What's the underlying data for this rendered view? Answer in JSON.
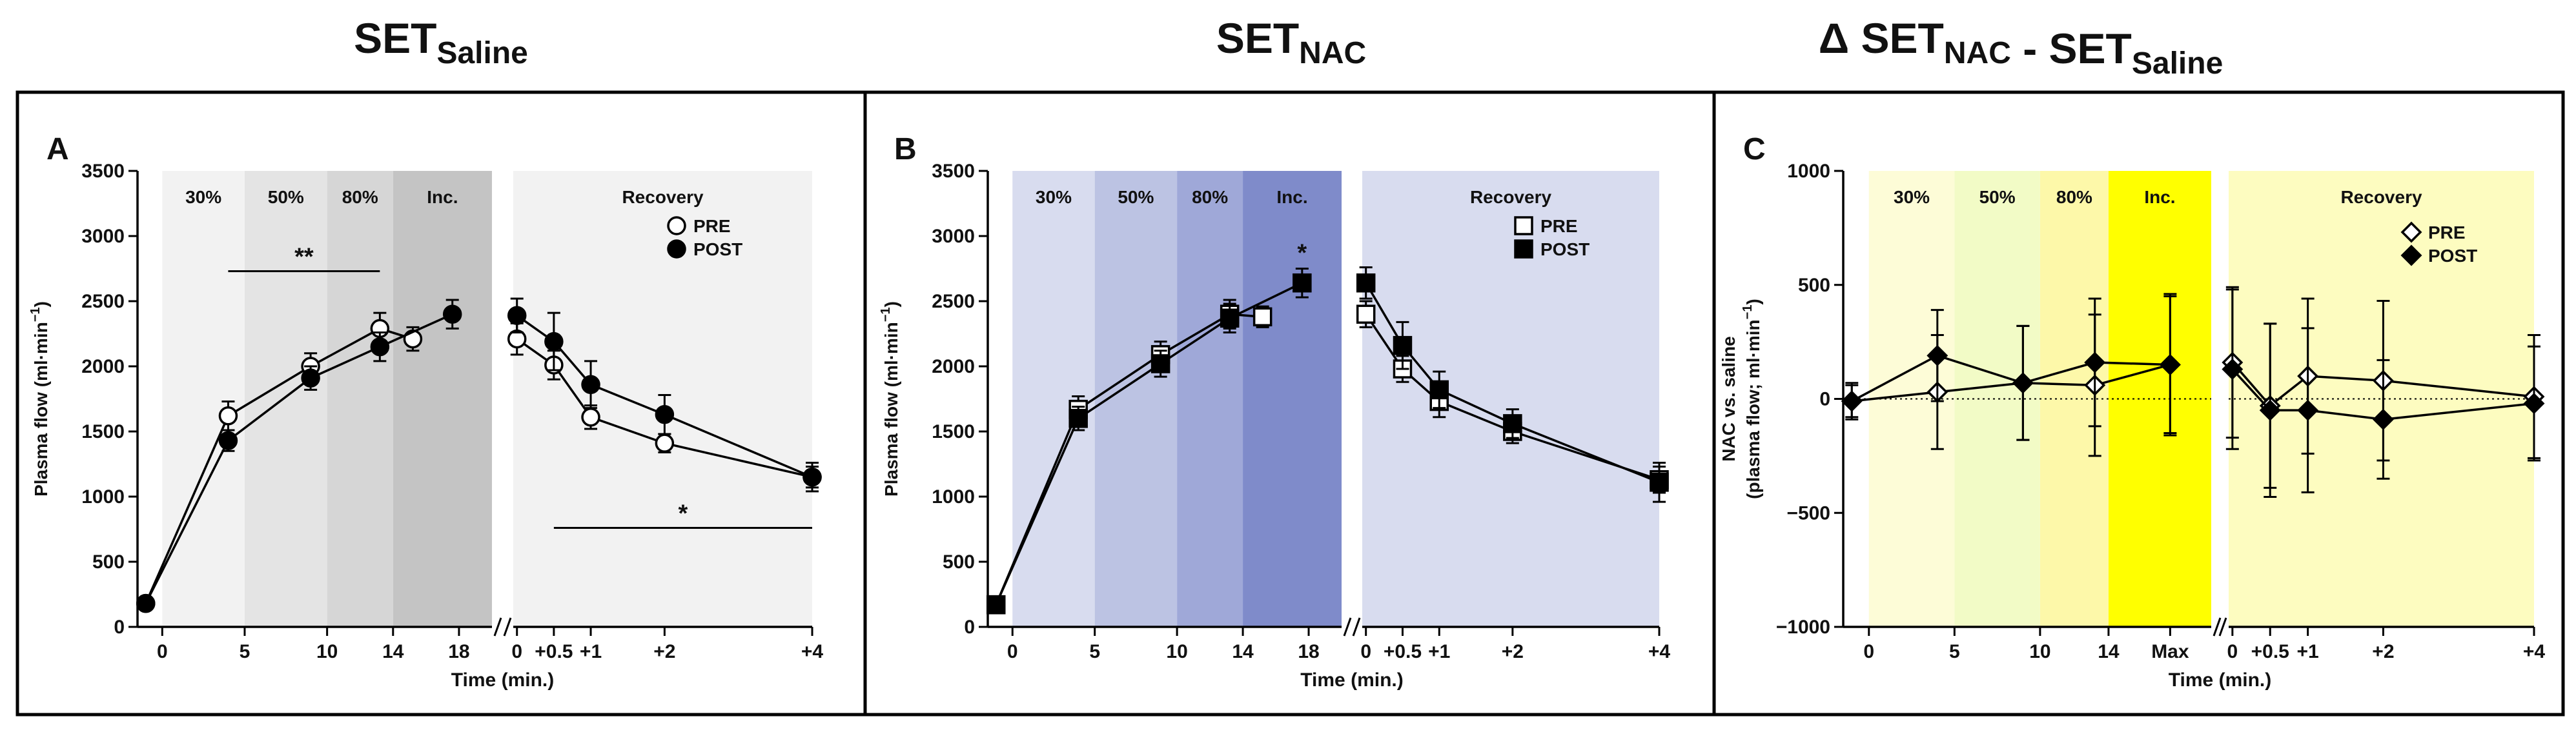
{
  "titles": [
    {
      "main": "SET",
      "sub": "Saline"
    },
    {
      "main": "SET",
      "sub": "NAC"
    },
    {
      "pre": "Δ SET",
      "sub1": "NAC",
      "mid": " - SET",
      "sub2": "Saline"
    }
  ],
  "chart_data": [
    {
      "type": "line",
      "panel_letter": "A",
      "ylabel": "Plasma flow (ml·min⁻¹)",
      "ylabel_parts": [
        "Plasma flow (ml·min",
        "−1",
        ")"
      ],
      "xlabel": "Time (min.)",
      "ylim": [
        0,
        3500
      ],
      "yticks": [
        0,
        500,
        1000,
        1500,
        2000,
        2500,
        3000,
        3500
      ],
      "exercise_xlim": [
        -1.5,
        20
      ],
      "exercise_ticks": [
        {
          "x": 0,
          "label": "0"
        },
        {
          "x": 5,
          "label": "5"
        },
        {
          "x": 10,
          "label": "10"
        },
        {
          "x": 14,
          "label": "14"
        },
        {
          "x": 18,
          "label": "18"
        }
      ],
      "recovery_xlim": [
        -0.05,
        4
      ],
      "recovery_ticks": [
        {
          "x": 0,
          "label": "0"
        },
        {
          "x": 0.5,
          "label": "+0.5"
        },
        {
          "x": 1,
          "label": "+1"
        },
        {
          "x": 2,
          "label": "+2"
        },
        {
          "x": 4,
          "label": "+4"
        }
      ],
      "phases": [
        {
          "label": "30%",
          "from": 0,
          "to": 5,
          "color": "#f2f2f2"
        },
        {
          "label": "50%",
          "from": 5,
          "to": 10,
          "color": "#e4e4e4"
        },
        {
          "label": "80%",
          "from": 10,
          "to": 14,
          "color": "#d6d6d6"
        },
        {
          "label": "Inc.",
          "from": 14,
          "to": 20,
          "color": "#c4c4c4"
        }
      ],
      "recovery_label": "Recovery",
      "recovery_color": "#f2f2f2",
      "marker": "circle",
      "series": [
        {
          "name": "PRE",
          "filled": false,
          "exercise": [
            {
              "x": -1,
              "y": 180,
              "e": 0
            },
            {
              "x": 4,
              "y": 1620,
              "e": 110
            },
            {
              "x": 9,
              "y": 2000,
              "e": 100
            },
            {
              "x": 13.2,
              "y": 2290,
              "e": 120
            },
            {
              "x": 15.2,
              "y": 2210,
              "e": 90
            }
          ],
          "recovery": [
            {
              "x": 0,
              "y": 2210,
              "e": 120
            },
            {
              "x": 0.5,
              "y": 2010,
              "e": 110
            },
            {
              "x": 1,
              "y": 1610,
              "e": 90
            },
            {
              "x": 2,
              "y": 1410,
              "e": 70
            },
            {
              "x": 4,
              "y": 1150,
              "e": 80
            }
          ]
        },
        {
          "name": "POST",
          "filled": true,
          "exercise": [
            {
              "x": -1,
              "y": 180,
              "e": 0
            },
            {
              "x": 4,
              "y": 1430,
              "e": 80
            },
            {
              "x": 9,
              "y": 1910,
              "e": 90
            },
            {
              "x": 13.2,
              "y": 2150,
              "e": 110
            },
            {
              "x": 17.6,
              "y": 2400,
              "e": 110
            }
          ],
          "recovery": [
            {
              "x": 0,
              "y": 2390,
              "e": 130
            },
            {
              "x": 0.5,
              "y": 2190,
              "e": 220
            },
            {
              "x": 1,
              "y": 1860,
              "e": 180
            },
            {
              "x": 2,
              "y": 1630,
              "e": 150
            },
            {
              "x": 4,
              "y": 1150,
              "e": 110
            }
          ]
        }
      ],
      "annotations": [
        {
          "text": "**",
          "section": "exercise",
          "x1": 4,
          "x2": 13.2,
          "y": 2730
        },
        {
          "text": "*",
          "section": "recovery",
          "x1": 0.5,
          "x2": 4,
          "y": 760
        }
      ]
    },
    {
      "type": "line",
      "panel_letter": "B",
      "ylabel": "Plasma flow (ml·min⁻¹)",
      "ylabel_parts": [
        "Plasma flow (ml·min",
        "−1",
        ")"
      ],
      "xlabel": "Time (min.)",
      "ylim": [
        0,
        3500
      ],
      "yticks": [
        0,
        500,
        1000,
        1500,
        2000,
        2500,
        3000,
        3500
      ],
      "exercise_xlim": [
        -1.5,
        20
      ],
      "exercise_ticks": [
        {
          "x": 0,
          "label": "0"
        },
        {
          "x": 5,
          "label": "5"
        },
        {
          "x": 10,
          "label": "10"
        },
        {
          "x": 14,
          "label": "14"
        },
        {
          "x": 18,
          "label": "18"
        }
      ],
      "recovery_xlim": [
        -0.05,
        4
      ],
      "recovery_ticks": [
        {
          "x": 0,
          "label": "0"
        },
        {
          "x": 0.5,
          "label": "+0.5"
        },
        {
          "x": 1,
          "label": "+1"
        },
        {
          "x": 2,
          "label": "+2"
        },
        {
          "x": 4,
          "label": "+4"
        }
      ],
      "phases": [
        {
          "label": "30%",
          "from": 0,
          "to": 5,
          "color": "#d8dcef"
        },
        {
          "label": "50%",
          "from": 5,
          "to": 10,
          "color": "#bcc3e3"
        },
        {
          "label": "80%",
          "from": 10,
          "to": 14,
          "color": "#9fa8d8"
        },
        {
          "label": "Inc.",
          "from": 14,
          "to": 20,
          "color": "#7f8bca"
        }
      ],
      "recovery_label": "Recovery",
      "recovery_color": "#d8dcef",
      "marker": "square",
      "series": [
        {
          "name": "PRE",
          "filled": false,
          "exercise": [
            {
              "x": -1,
              "y": 170,
              "e": 0
            },
            {
              "x": 4,
              "y": 1670,
              "e": 100
            },
            {
              "x": 9,
              "y": 2090,
              "e": 100
            },
            {
              "x": 13.2,
              "y": 2400,
              "e": 110
            },
            {
              "x": 15.2,
              "y": 2380,
              "e": 80
            }
          ],
          "recovery": [
            {
              "x": 0,
              "y": 2400,
              "e": 100
            },
            {
              "x": 0.5,
              "y": 1980,
              "e": 100
            },
            {
              "x": 1,
              "y": 1730,
              "e": 120
            },
            {
              "x": 2,
              "y": 1500,
              "e": 90
            },
            {
              "x": 4,
              "y": 1130,
              "e": 100
            }
          ]
        },
        {
          "name": "POST",
          "filled": true,
          "exercise": [
            {
              "x": -1,
              "y": 170,
              "e": 0
            },
            {
              "x": 4,
              "y": 1600,
              "e": 90
            },
            {
              "x": 9,
              "y": 2020,
              "e": 100
            },
            {
              "x": 13.2,
              "y": 2370,
              "e": 110
            },
            {
              "x": 17.6,
              "y": 2640,
              "e": 110
            }
          ],
          "recovery": [
            {
              "x": 0,
              "y": 2640,
              "e": 120
            },
            {
              "x": 0.5,
              "y": 2160,
              "e": 180
            },
            {
              "x": 1,
              "y": 1820,
              "e": 140
            },
            {
              "x": 2,
              "y": 1560,
              "e": 110
            },
            {
              "x": 4,
              "y": 1110,
              "e": 150
            }
          ]
        }
      ],
      "annotations": [
        {
          "text": "*",
          "section": "exercise",
          "x1": 17.6,
          "x2": 17.6,
          "y": 2760,
          "no_line": true
        }
      ]
    },
    {
      "type": "line",
      "panel_letter": "C",
      "ylabel": "NAC vs. saline (plasma flow; ml·min⁻¹)",
      "ylabel_line1": "NAC vs. saline",
      "ylabel_parts": [
        "(plasma flow; ml·min",
        "−1",
        ")"
      ],
      "xlabel": "Time (min.)",
      "ylim": [
        -1000,
        1000
      ],
      "yticks": [
        -1000,
        -500,
        0,
        500,
        1000
      ],
      "zero_line": true,
      "exercise_xlim": [
        -1.5,
        20
      ],
      "exercise_ticks": [
        {
          "x": 0,
          "label": "0"
        },
        {
          "x": 5,
          "label": "5"
        },
        {
          "x": 10,
          "label": "10"
        },
        {
          "x": 14,
          "label": "14"
        },
        {
          "x": 17.6,
          "label": "Max"
        }
      ],
      "recovery_xlim": [
        -0.05,
        4
      ],
      "recovery_ticks": [
        {
          "x": 0,
          "label": "0"
        },
        {
          "x": 0.5,
          "label": "+0.5"
        },
        {
          "x": 1,
          "label": "+1"
        },
        {
          "x": 2,
          "label": "+2"
        },
        {
          "x": 4,
          "label": "+4"
        }
      ],
      "phases": [
        {
          "label": "30%",
          "from": 0,
          "to": 5,
          "color": "#fdfcd7"
        },
        {
          "label": "50%",
          "from": 5,
          "to": 10,
          "color": "#f2fbc6"
        },
        {
          "label": "80%",
          "from": 10,
          "to": 14,
          "color": "#fdf8a9"
        },
        {
          "label": "Inc.",
          "from": 14,
          "to": 20,
          "color": "#ffff00"
        }
      ],
      "recovery_label": "Recovery",
      "recovery_color": "#fdfcc0",
      "marker": "diamond",
      "series": [
        {
          "name": "PRE",
          "filled": false,
          "exercise": [
            {
              "x": -1,
              "y": -10,
              "e": 70
            },
            {
              "x": 4,
              "y": 30,
              "e": 250
            },
            {
              "x": 9,
              "y": 70,
              "e": 250
            },
            {
              "x": 13.2,
              "y": 60,
              "e": 310
            },
            {
              "x": 17.6,
              "y": 150,
              "e": 300
            }
          ],
          "recovery": [
            {
              "x": 0,
              "y": 160,
              "e": 330
            },
            {
              "x": 0.5,
              "y": -30,
              "e": 360
            },
            {
              "x": 1,
              "y": 100,
              "e": 340
            },
            {
              "x": 2,
              "y": 80,
              "e": 350
            },
            {
              "x": 4,
              "y": 10,
              "e": 270
            }
          ]
        },
        {
          "name": "POST",
          "filled": true,
          "exercise": [
            {
              "x": -1,
              "y": -10,
              "e": 80
            },
            {
              "x": 4,
              "y": 190,
              "e": 200
            },
            {
              "x": 9,
              "y": 70,
              "e": 250
            },
            {
              "x": 13.2,
              "y": 160,
              "e": 280
            },
            {
              "x": 17.6,
              "y": 150,
              "e": 310
            }
          ],
          "recovery": [
            {
              "x": 0,
              "y": 130,
              "e": 350
            },
            {
              "x": 0.5,
              "y": -50,
              "e": 380
            },
            {
              "x": 1,
              "y": -50,
              "e": 360
            },
            {
              "x": 2,
              "y": -90,
              "e": 260
            },
            {
              "x": 4,
              "y": -20,
              "e": 250
            }
          ]
        }
      ],
      "annotations": []
    }
  ]
}
